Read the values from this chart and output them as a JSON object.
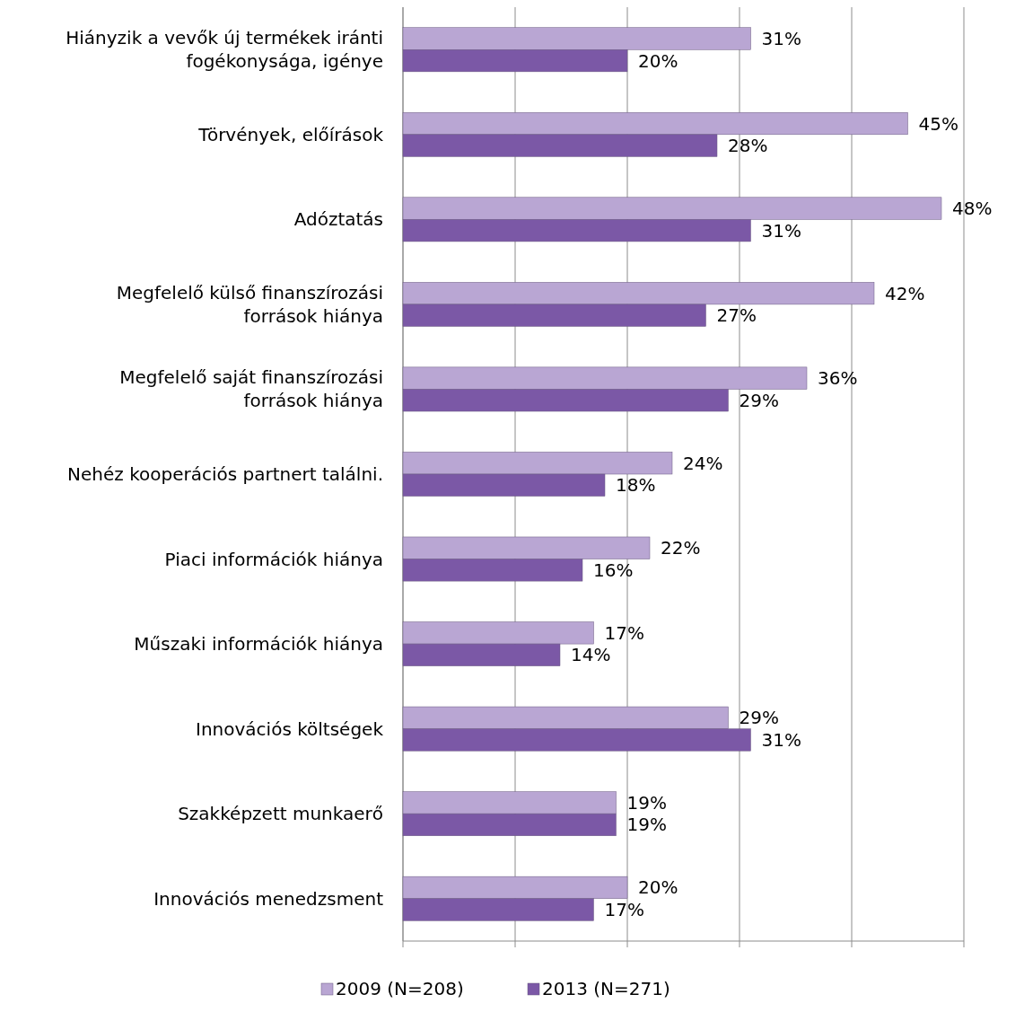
{
  "chart_data": {
    "type": "bar",
    "orientation": "horizontal",
    "categories": [
      "Hiányzik a vevők új termékek iránti fogékonysága, igénye",
      "Törvények, előírások",
      "Adóztatás",
      "Megfelelő külső finanszírozási források hiánya",
      "Megfelelő saját finanszírozási források hiánya",
      "Nehéz kooperációs partnert találni.",
      "Piaci információk hiánya",
      "Műszaki információk hiánya",
      "Innovációs költségek",
      "Szakképzett munkaerő",
      "Innovációs menedzsment "
    ],
    "series": [
      {
        "name": "2009 (N=208)",
        "color": "#b9a6d3",
        "values": [
          31,
          45,
          48,
          42,
          36,
          24,
          22,
          17,
          29,
          19,
          20
        ],
        "value_labels": [
          "31%",
          "45%",
          "48%",
          "42%",
          "36%",
          "24%",
          "22%",
          "17%",
          "29%",
          "19%",
          "20%"
        ]
      },
      {
        "name": "2013 (N=271)",
        "color": "#7b58a6",
        "values": [
          20,
          28,
          31,
          27,
          29,
          18,
          16,
          14,
          31,
          19,
          17
        ],
        "value_labels": [
          "20%",
          "28%",
          "31%",
          "27%",
          "29%",
          "18%",
          "16%",
          "14%",
          "31%",
          "19%",
          "17%"
        ]
      }
    ],
    "xlim": [
      0,
      50
    ],
    "xticks": [
      {
        "value": 0,
        "label": null
      },
      {
        "value": 10,
        "label": null
      },
      {
        "value": 20,
        "label": null
      },
      {
        "value": 30,
        "label": null
      },
      {
        "value": 40,
        "label": null
      },
      {
        "value": 50,
        "label": null
      }
    ],
    "tick_labels": "y",
    "grid": "x",
    "legend": "bottom"
  }
}
